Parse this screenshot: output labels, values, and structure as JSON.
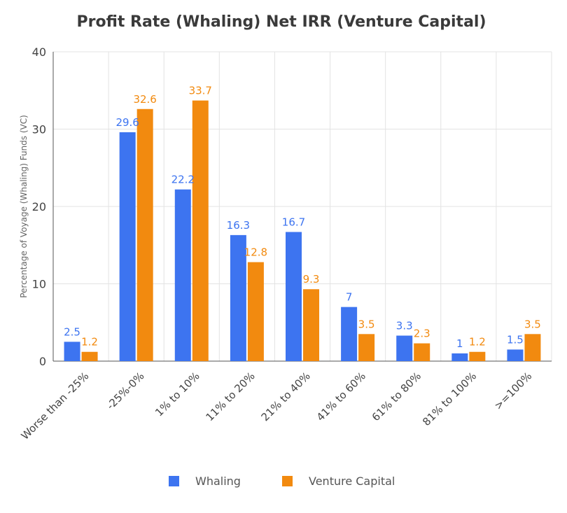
{
  "chart_data": {
    "type": "bar",
    "title": "Profit Rate (Whaling) Net IRR (Venture Capital)",
    "ylabel": "Percentage of Voyage (Whaling) Funds (VC)",
    "xlabel": "",
    "ylim": [
      0,
      40
    ],
    "yticks": [
      0,
      10,
      20,
      30,
      40
    ],
    "grid": true,
    "legend_position": "bottom",
    "categories": [
      "Worse than -25%",
      "-25%-0%",
      "1% to 10%",
      "11% to 20%",
      "21% to 40%",
      "41% to 60%",
      "61% to 80%",
      "81% to 100%",
      ">=100%"
    ],
    "series": [
      {
        "name": "Whaling",
        "color": "#3d74f0",
        "values": [
          2.5,
          29.6,
          22.2,
          16.3,
          16.7,
          7,
          3.3,
          1,
          1.5
        ]
      },
      {
        "name": "Venture Capital",
        "color": "#f28a0f",
        "values": [
          1.2,
          32.6,
          33.7,
          12.8,
          9.3,
          3.5,
          2.3,
          1.2,
          3.5
        ]
      }
    ]
  }
}
